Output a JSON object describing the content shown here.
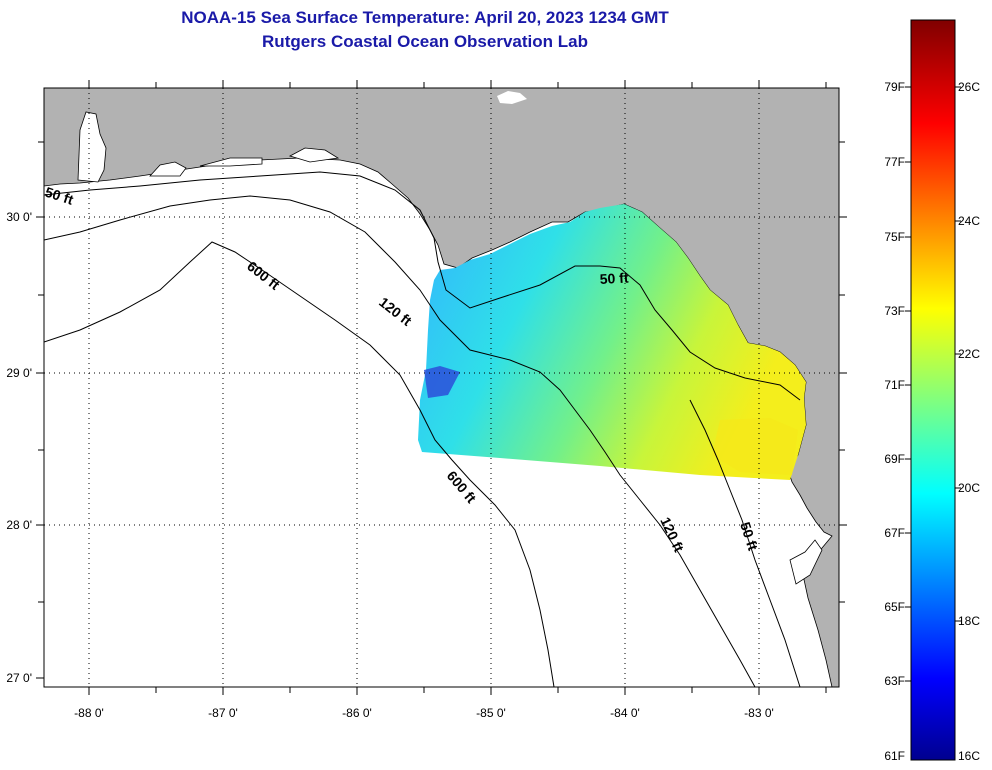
{
  "header": {
    "title": "NOAA-15 Sea Surface Temperature:  April 20, 2023 1234 GMT",
    "subtitle": "Rutgers Coastal Ocean Observation Lab"
  },
  "axes": {
    "lat_labels": [
      "30 0'",
      "29 0'",
      "28 0'",
      "27 0'"
    ],
    "lon_labels": [
      "-88 0'",
      "-87 0'",
      "-86 0'",
      "-85 0'",
      "-84 0'",
      "-83 0'"
    ]
  },
  "contours": {
    "shelf_50_west": "50 ft",
    "shelf_600_west": "600 ft",
    "shelf_120_west": "120 ft",
    "shelf_50_bigbend": "50 ft",
    "shelf_600_south": "600 ft",
    "shelf_120_south": "120 ft",
    "shelf_50_south": "50 ft"
  },
  "colorbar": {
    "fahrenheit": [
      "79F",
      "77F",
      "75F",
      "73F",
      "71F",
      "69F",
      "67F",
      "65F",
      "63F",
      "61F"
    ],
    "celsius": [
      "26C",
      "24C",
      "22C",
      "20C",
      "18C",
      "16C"
    ]
  },
  "colors": {
    "title": "#1a1aa8",
    "land": "#b2b2b2",
    "water": "#ffffff",
    "gridline": "#000000"
  }
}
